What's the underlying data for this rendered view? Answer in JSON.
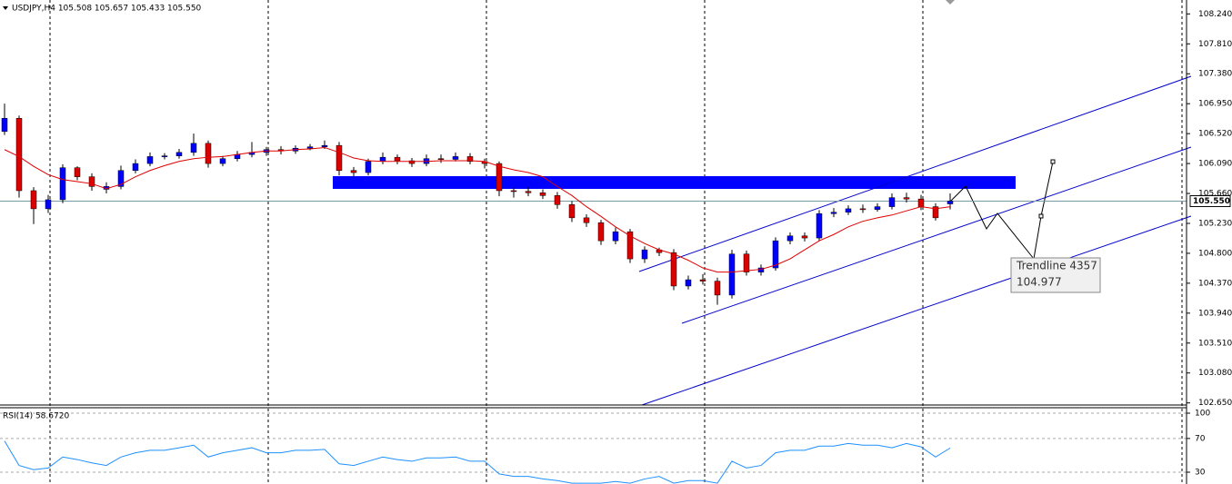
{
  "chart_data": [
    {
      "type": "candlestick",
      "title": "USDJPY,H4 105.508 105.657 105.433 105.550",
      "up_color": "#0000ff",
      "down_color": "#dd0000",
      "open": [
        106.55,
        106.74,
        105.7,
        105.44,
        105.57,
        106.03,
        105.9,
        105.72,
        105.76,
        105.99,
        106.09,
        106.19,
        106.2,
        106.25,
        106.38,
        106.09,
        106.16,
        106.22,
        106.25,
        106.29,
        106.27,
        106.31,
        106.33,
        106.35,
        105.99,
        105.96,
        106.12,
        106.18,
        106.13,
        106.09,
        106.16,
        106.15,
        106.19,
        106.12,
        106.09,
        105.7,
        105.69,
        105.67,
        105.63,
        105.5,
        105.31,
        105.24,
        104.98,
        105.11,
        104.72,
        104.85,
        104.81,
        104.33,
        104.42,
        104.4,
        104.2,
        104.79,
        104.53,
        104.59,
        104.98,
        105.05,
        105.02,
        105.37,
        105.39,
        105.44,
        105.43,
        105.47,
        105.6,
        105.58,
        105.47,
        105.51
      ],
      "high": [
        106.95,
        106.78,
        105.75,
        105.64,
        106.08,
        106.05,
        105.95,
        105.82,
        106.06,
        106.15,
        106.25,
        106.24,
        106.3,
        106.52,
        106.42,
        106.2,
        106.27,
        106.4,
        106.33,
        106.34,
        106.35,
        106.37,
        106.42,
        106.4,
        106.04,
        106.16,
        106.25,
        106.22,
        106.17,
        106.22,
        106.22,
        106.25,
        106.24,
        106.16,
        106.12,
        105.74,
        105.75,
        105.72,
        105.68,
        105.55,
        105.36,
        105.28,
        105.17,
        105.15,
        104.9,
        104.88,
        104.86,
        104.48,
        104.5,
        104.45,
        104.85,
        104.84,
        104.64,
        105.03,
        105.1,
        105.1,
        105.42,
        105.45,
        105.49,
        105.5,
        105.52,
        105.66,
        105.67,
        105.64,
        105.52,
        105.66
      ],
      "low": [
        106.5,
        105.6,
        105.22,
        105.38,
        105.52,
        105.85,
        105.7,
        105.66,
        105.72,
        105.95,
        106.05,
        106.15,
        106.16,
        106.2,
        106.03,
        106.05,
        106.12,
        106.18,
        106.2,
        106.22,
        106.23,
        106.28,
        106.3,
        105.92,
        105.9,
        105.92,
        106.08,
        106.08,
        106.04,
        106.05,
        106.1,
        106.12,
        106.08,
        106.02,
        105.62,
        105.6,
        105.62,
        105.58,
        105.44,
        105.25,
        105.18,
        104.92,
        104.93,
        104.66,
        104.66,
        104.76,
        104.27,
        104.28,
        104.35,
        104.06,
        104.15,
        104.48,
        104.48,
        104.55,
        104.93,
        104.97,
        104.98,
        105.32,
        105.35,
        105.38,
        105.4,
        105.43,
        105.53,
        105.42,
        105.27,
        105.43
      ],
      "close": [
        106.74,
        105.7,
        105.44,
        105.57,
        106.03,
        105.9,
        105.76,
        105.76,
        105.99,
        106.09,
        106.19,
        106.2,
        106.25,
        106.38,
        106.09,
        106.16,
        106.22,
        106.25,
        106.29,
        106.27,
        106.31,
        106.33,
        106.35,
        105.99,
        105.96,
        106.12,
        106.18,
        106.13,
        106.09,
        106.16,
        106.15,
        106.19,
        106.12,
        106.09,
        105.7,
        105.69,
        105.67,
        105.63,
        105.5,
        105.31,
        105.24,
        104.98,
        105.11,
        104.72,
        104.85,
        104.81,
        104.33,
        104.42,
        104.4,
        104.2,
        104.79,
        104.53,
        104.59,
        104.98,
        105.05,
        105.02,
        105.37,
        105.39,
        105.44,
        105.43,
        105.47,
        105.6,
        105.58,
        105.47,
        105.31,
        105.55
      ],
      "ma": {
        "color": "#e00000",
        "values": [
          106.29,
          106.19,
          106.05,
          105.93,
          105.86,
          105.83,
          105.8,
          105.73,
          105.79,
          105.9,
          105.99,
          106.06,
          106.12,
          106.16,
          106.18,
          106.19,
          106.22,
          106.25,
          106.27,
          106.27,
          106.29,
          106.3,
          106.32,
          106.25,
          106.17,
          106.13,
          106.12,
          106.12,
          106.12,
          106.12,
          106.13,
          106.13,
          106.13,
          106.12,
          106.05,
          106.0,
          105.96,
          105.9,
          105.76,
          105.63,
          105.47,
          105.33,
          105.18,
          105.05,
          104.94,
          104.85,
          104.79,
          104.7,
          104.59,
          104.53,
          104.53,
          104.55,
          104.57,
          104.63,
          104.72,
          104.85,
          104.98,
          105.07,
          105.18,
          105.26,
          105.31,
          105.35,
          105.41,
          105.47,
          105.44,
          105.47
        ]
      },
      "last_price": {
        "value": 105.55,
        "label": "105.550"
      },
      "ylim": [
        102.62,
        108.44
      ],
      "yticks": [
        {
          "value": 108.24,
          "label": "108.240"
        },
        {
          "value": 107.81,
          "label": "107.810"
        },
        {
          "value": 107.38,
          "label": "107.380"
        },
        {
          "value": 106.95,
          "label": "106.950"
        },
        {
          "value": 106.52,
          "label": "106.520"
        },
        {
          "value": 106.09,
          "label": "106.090"
        },
        {
          "value": 105.66,
          "label": "105.660"
        },
        {
          "value": 105.23,
          "label": "105.230"
        },
        {
          "value": 104.8,
          "label": "104.800"
        },
        {
          "value": 104.37,
          "label": "104.370"
        },
        {
          "value": 103.94,
          "label": "103.940"
        },
        {
          "value": 103.51,
          "label": "103.510"
        },
        {
          "value": 103.08,
          "label": "103.080"
        },
        {
          "value": 102.65,
          "label": "102.650"
        }
      ],
      "grid": false,
      "tooltip": {
        "name": "Trendline 4357",
        "value": "104.977"
      }
    },
    {
      "type": "line",
      "title": "RSI(14) 58.6720",
      "color": "#1e90ff",
      "values": [
        67,
        38,
        33,
        35,
        48,
        45,
        41,
        38,
        48,
        53,
        56,
        56,
        59,
        62,
        48,
        53,
        56,
        59,
        53,
        53,
        56,
        56,
        57,
        40,
        38,
        43,
        48,
        45,
        43,
        47,
        47,
        48,
        43,
        43,
        28,
        25,
        25,
        22,
        20,
        17,
        17,
        17,
        19,
        17,
        22,
        25,
        17,
        20,
        20,
        17,
        43,
        35,
        38,
        53,
        56,
        56,
        61,
        61,
        64,
        62,
        62,
        59,
        64,
        60,
        48,
        58.672
      ],
      "ylim": [
        16,
        100
      ],
      "yticks": [
        100,
        70,
        30
      ]
    }
  ]
}
